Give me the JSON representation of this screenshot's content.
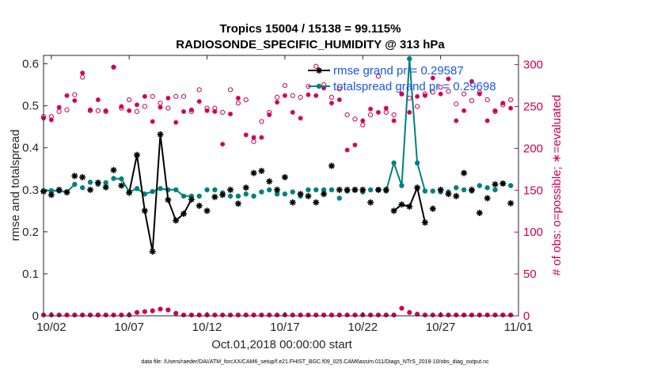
{
  "chart_data": {
    "type": "line",
    "title_line1": "Tropics 15004 / 15138 = 99.115%",
    "title_line2": "RADIOSONDE_SPECIFIC_HUMIDITY @ 313 hPa",
    "ylabel_left": "rmse and totalspread",
    "ylabel_right": "# of obs: o=possible; ∗=evaluated",
    "xlabel": "Oct.01,2018 00:00:00 start",
    "footnote": "data file: /Users/raeder/DAI/ATM_forcXX/CAM6_setup/f.e21.FHIST_BGC.f09_025.CAM6assim.011/Diags_NTrS_2018-10/obs_diag_output.nc",
    "xlim": [
      1.5,
      32.0
    ],
    "ylim_left": [
      0,
      0.62
    ],
    "ylim_right": [
      0,
      311
    ],
    "x_tick_values": [
      2,
      7,
      12,
      17,
      22,
      27,
      32
    ],
    "x_tick_labels": [
      "10/02",
      "10/07",
      "10/12",
      "10/17",
      "10/22",
      "10/27",
      "11/01"
    ],
    "y_left_ticks": [
      0,
      0.1,
      0.2,
      0.3,
      0.4,
      0.5,
      0.6
    ],
    "y_left_tick_labels": [
      "0",
      "0.1",
      "0.2",
      "0.3",
      "0.4",
      "0.5",
      "0.6"
    ],
    "y_right_ticks": [
      0,
      50,
      100,
      150,
      200,
      250,
      300
    ],
    "y_right_tick_labels": [
      "0",
      "50",
      "100",
      "150",
      "200",
      "250",
      "300"
    ],
    "colors": {
      "rmse": "#000000",
      "spread": "#008080",
      "obs": "#cc0055",
      "legend_text": "#1a55e0"
    },
    "legend": [
      {
        "label": "rmse grand pr = 0.29587"
      },
      {
        "label": "totalspread grand pr = 0.29698"
      }
    ],
    "x": [
      1.5,
      2.0,
      2.5,
      3.0,
      3.5,
      4.0,
      4.5,
      5.0,
      5.5,
      6.0,
      6.5,
      7.0,
      7.5,
      8.0,
      8.5,
      9.0,
      9.5,
      10.0,
      10.5,
      11.0,
      11.5,
      12.0,
      12.5,
      13.0,
      13.5,
      14.0,
      14.5,
      15.0,
      15.5,
      16.0,
      16.5,
      17.0,
      17.5,
      18.0,
      18.5,
      19.0,
      19.5,
      20.0,
      20.5,
      21.0,
      21.5,
      22.0,
      22.5,
      23.0,
      23.5,
      24.0,
      24.5,
      25.0,
      25.5,
      26.0,
      26.5,
      27.0,
      27.5,
      28.0,
      28.5,
      29.0,
      29.5,
      30.0,
      30.5,
      31.0,
      31.5
    ],
    "series": [
      {
        "name": "rmse",
        "marker": "asterisk",
        "values": [
          0.296,
          0.288,
          0.3,
          0.294,
          0.333,
          0.33,
          0.3,
          0.317,
          0.306,
          0.347,
          0.31,
          0.293,
          0.383,
          0.25,
          0.153,
          0.432,
          0.276,
          0.227,
          0.243,
          0.277,
          0.262,
          0.25,
          0.283,
          0.288,
          0.3,
          0.267,
          0.305,
          0.34,
          0.345,
          0.32,
          0.3,
          0.33,
          0.27,
          0.29,
          0.285,
          0.27,
          0.29,
          0.357,
          0.3,
          0.3,
          0.3,
          0.3,
          0.27,
          0.3,
          0.3,
          0.25,
          0.265,
          0.26,
          0.305,
          0.222,
          0.255,
          0.3,
          0.29,
          0.285,
          0.34,
          0.3,
          0.245,
          0.28,
          0.313,
          0.315,
          0.268
        ],
        "connected_ranges": [
          [
            11,
            19
          ],
          [
            45,
            49
          ]
        ]
      },
      {
        "name": "totalspread",
        "marker": "filled-circle",
        "values": [
          0.298,
          0.298,
          0.297,
          0.295,
          0.313,
          0.305,
          0.318,
          0.313,
          0.317,
          0.327,
          0.326,
          0.295,
          0.303,
          0.29,
          0.296,
          0.303,
          0.3,
          0.3,
          0.285,
          0.285,
          0.285,
          0.3,
          0.3,
          0.293,
          0.285,
          0.285,
          0.29,
          0.285,
          0.295,
          0.3,
          0.29,
          0.29,
          0.295,
          0.285,
          0.3,
          0.3,
          0.3,
          0.3,
          0.28,
          0.297,
          0.3,
          0.295,
          0.3,
          0.3,
          0.297,
          0.364,
          0.31,
          0.612,
          0.364,
          0.297,
          0.297,
          0.295,
          0.295,
          0.305,
          0.3,
          0.297,
          0.31,
          0.305,
          0.3,
          0.315,
          0.31
        ],
        "connected_ranges": [
          [
            0,
            4
          ],
          [
            9,
            19
          ],
          [
            44,
            49
          ]
        ]
      },
      {
        "name": "obs_possible",
        "axis": "right",
        "marker": "open-circle",
        "values": [
          238,
          238,
          244,
          246,
          264,
          285,
          245,
          245,
          244,
          297,
          248,
          258,
          244,
          250,
          262,
          254,
          248,
          262,
          262,
          244,
          270,
          248,
          248,
          243,
          270,
          254,
          258,
          208,
          232,
          243,
          261,
          275,
          263,
          261,
          274,
          298,
          276,
          261,
          271,
          240,
          235,
          228,
          240,
          286,
          243,
          240,
          265,
          260,
          250,
          265,
          267,
          273,
          268,
          253,
          265,
          257,
          267,
          258,
          244,
          252,
          258
        ]
      },
      {
        "name": "obs_evaluated",
        "axis": "right",
        "marker": "asterisk",
        "values": [
          236,
          234,
          249,
          263,
          257,
          290,
          246,
          258,
          245,
          297,
          250,
          245,
          252,
          262,
          232,
          249,
          260,
          231,
          244,
          246,
          256,
          245,
          244,
          205,
          241,
          260,
          216,
          213,
          213,
          240,
          255,
          263,
          243,
          236,
          264,
          263,
          272,
          254,
          258,
          198,
          204,
          233,
          247,
          243,
          248,
          233,
          265,
          243,
          262,
          263,
          284,
          265,
          283,
          233,
          245,
          280,
          265,
          233,
          245,
          254,
          248
        ]
      },
      {
        "name": "obs_count_low",
        "axis": "right",
        "marker": "open-circle-asterisk",
        "values": [
          1,
          1,
          1,
          1,
          1,
          1,
          1,
          1,
          1,
          1,
          1,
          1,
          4,
          5,
          6,
          8,
          7,
          3,
          1,
          1,
          1,
          1,
          1,
          1,
          1,
          1,
          1,
          1,
          1,
          1,
          1,
          1,
          1,
          1,
          1,
          1,
          1,
          1,
          1,
          1,
          1,
          1,
          1,
          1,
          1,
          1,
          9,
          4,
          2,
          1,
          1,
          1,
          1,
          1,
          1,
          1,
          1,
          1,
          1,
          1,
          1
        ]
      }
    ]
  }
}
